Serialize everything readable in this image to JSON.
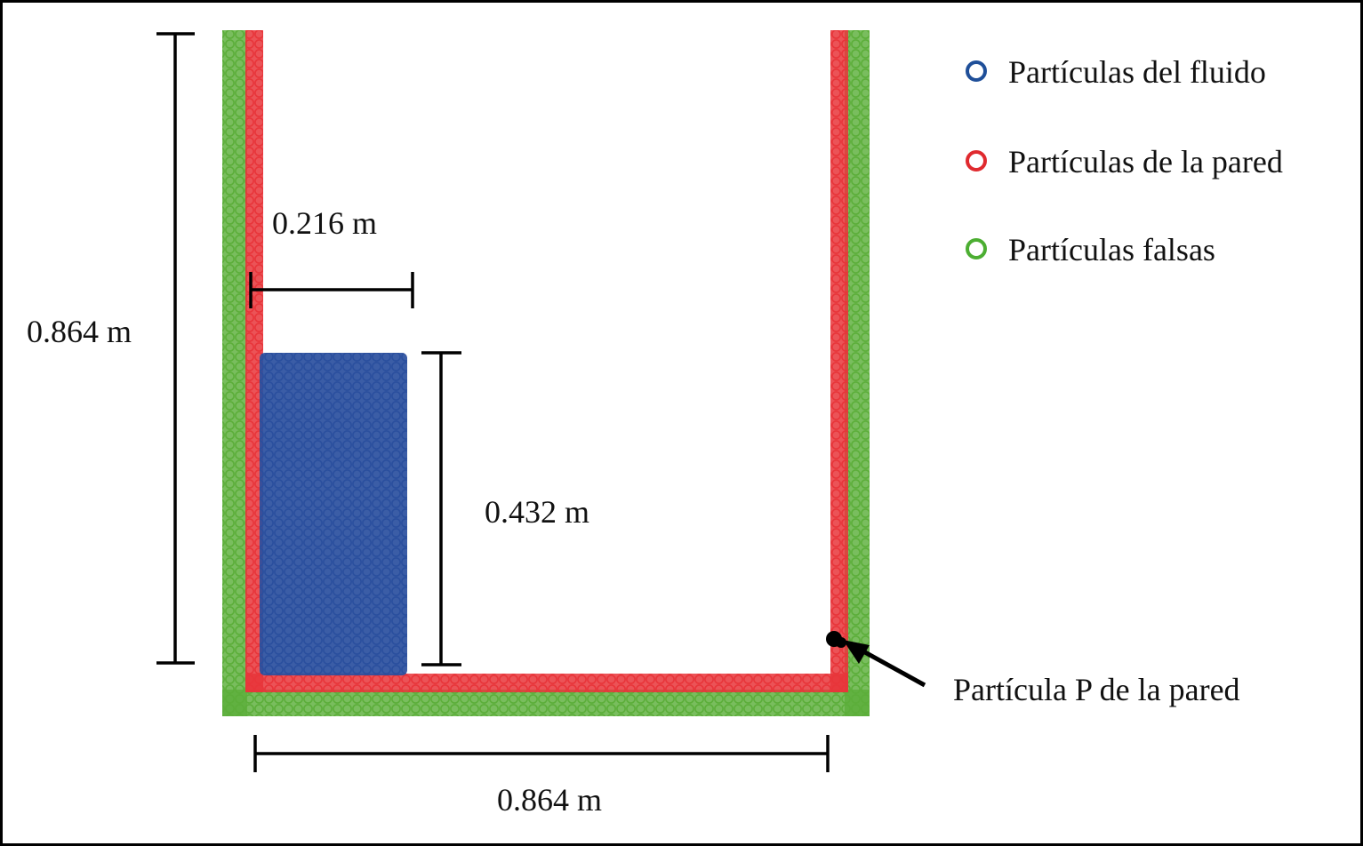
{
  "colors": {
    "fluid": "#2a4f9e",
    "wall": "#e8353a",
    "ghost": "#5cae3a",
    "dimension": "#000000"
  },
  "legend": {
    "items": [
      {
        "label": "Partículas del fluido",
        "color": "#1f4f99"
      },
      {
        "label": "Partículas de la pared",
        "color": "#e02a2f"
      },
      {
        "label": "Partículas falsas",
        "color": "#4cae32"
      }
    ]
  },
  "dimensions": {
    "tank_height": "0.864 m",
    "tank_width": "0.864 m",
    "column_width": "0.216 m",
    "column_height": "0.432 m"
  },
  "annotation": {
    "particle_p": "Partícula P de la pared"
  }
}
